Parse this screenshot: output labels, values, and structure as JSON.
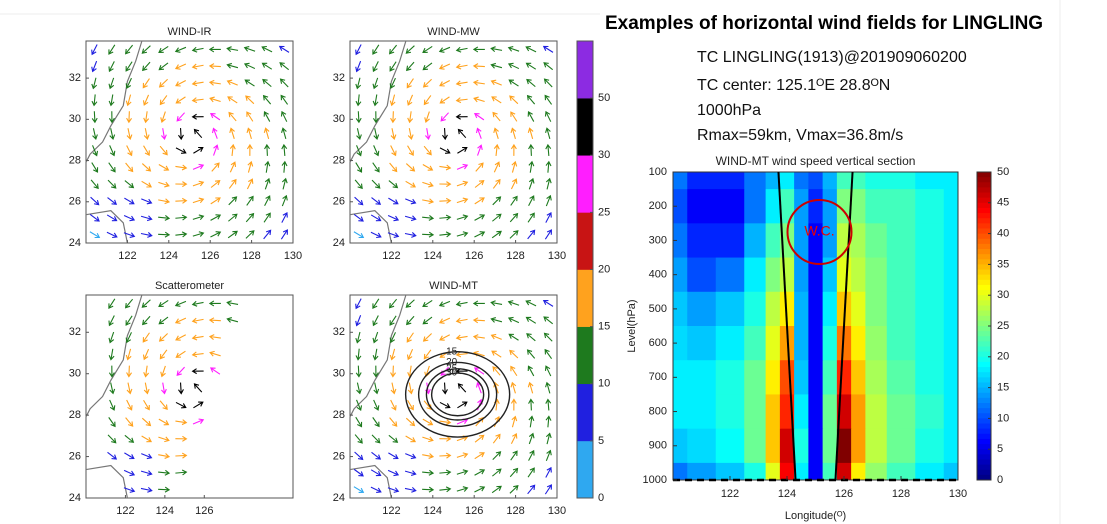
{
  "title": "Examples of horizontal wind fields for LINGLING",
  "info": [
    "TC LINGLING(1913)@201909060200",
    "TC center: 125.1ᴼE 28.8ᴼN",
    "1000hPa",
    "Rmax=59km, Vmax=36.8m/s"
  ],
  "wind_colorbar": {
    "levels": [
      0,
      5,
      10,
      15,
      20,
      25,
      30,
      50
    ],
    "colors": [
      "#2fa8f0",
      "#2020e0",
      "#1e7a1e",
      "#ffa21e",
      "#c81414",
      "#ff1eff",
      "#000000",
      "#8c2be2"
    ]
  },
  "chart_data": [
    {
      "type": "vector_map",
      "title": "WIND-IR",
      "xlim": [
        120,
        130
      ],
      "ylim": [
        24,
        33.8
      ],
      "xticks": [
        122,
        124,
        126,
        128,
        130
      ],
      "yticks": [
        24,
        26,
        28,
        30,
        32
      ]
    },
    {
      "type": "vector_map",
      "title": "WIND-MW",
      "xlim": [
        120,
        130
      ],
      "ylim": [
        24,
        33.8
      ],
      "xticks": [
        122,
        124,
        126,
        128,
        130
      ],
      "yticks": [
        24,
        26,
        28,
        30,
        32
      ]
    },
    {
      "type": "vector_map",
      "title": "Scatterometer",
      "xlim": [
        120,
        130.5
      ],
      "ylim": [
        24,
        33.8
      ],
      "xticks": [
        122,
        124,
        126
      ],
      "yticks": [
        24,
        26,
        28,
        30,
        32
      ]
    },
    {
      "type": "vector_map",
      "title": "WIND-MT",
      "xlim": [
        120,
        130
      ],
      "ylim": [
        24,
        33.8
      ],
      "xticks": [
        122,
        124,
        126,
        128,
        130
      ],
      "yticks": [
        24,
        26,
        28,
        30,
        32
      ],
      "contour_levels": [
        15,
        20,
        25,
        30
      ]
    },
    {
      "type": "heatmap",
      "title": "WIND-MT wind speed vertical section",
      "xlabel": "Longitude(ᴼ)",
      "ylabel": "Level(hPa)",
      "annotation": "W.C.",
      "colormap": "jet",
      "xlim": [
        120,
        130
      ],
      "ylim": [
        1000,
        100
      ],
      "xticks": [
        122,
        124,
        126,
        128,
        130
      ],
      "yticks": [
        100,
        200,
        300,
        400,
        500,
        600,
        700,
        800,
        900,
        1000
      ],
      "clim": [
        0,
        50
      ],
      "cticks": [
        0,
        5,
        10,
        15,
        20,
        25,
        30,
        35,
        40,
        45,
        50
      ],
      "x": [
        120,
        121,
        122,
        123,
        123.5,
        124,
        124.5,
        125,
        125.5,
        126,
        126.5,
        127,
        128,
        129,
        130
      ],
      "y": [
        100,
        200,
        300,
        400,
        500,
        600,
        700,
        800,
        900,
        1000
      ],
      "values": [
        [
          12,
          8,
          8,
          12,
          15,
          18,
          12,
          10,
          15,
          22,
          22,
          20,
          20,
          18,
          18
        ],
        [
          10,
          6,
          6,
          12,
          18,
          22,
          14,
          8,
          14,
          25,
          25,
          22,
          22,
          20,
          18
        ],
        [
          12,
          8,
          8,
          15,
          22,
          25,
          14,
          6,
          14,
          28,
          27,
          24,
          22,
          20,
          18
        ],
        [
          14,
          10,
          12,
          18,
          25,
          28,
          14,
          6,
          16,
          30,
          28,
          25,
          22,
          20,
          18
        ],
        [
          16,
          14,
          16,
          20,
          28,
          32,
          15,
          6,
          18,
          34,
          30,
          25,
          22,
          20,
          18
        ],
        [
          17,
          16,
          18,
          22,
          30,
          36,
          15,
          6,
          20,
          38,
          32,
          26,
          22,
          20,
          18
        ],
        [
          18,
          18,
          20,
          24,
          32,
          40,
          16,
          6,
          22,
          42,
          34,
          27,
          23,
          20,
          18
        ],
        [
          18,
          18,
          20,
          24,
          34,
          42,
          18,
          6,
          24,
          46,
          36,
          28,
          24,
          21,
          18
        ],
        [
          16,
          17,
          19,
          24,
          34,
          46,
          20,
          6,
          24,
          50,
          36,
          28,
          24,
          20,
          18
        ],
        [
          12,
          14,
          16,
          20,
          30,
          44,
          18,
          6,
          22,
          46,
          32,
          26,
          22,
          18,
          16
        ]
      ],
      "lines": [
        {
          "x": [
            124.3,
            123.7
          ],
          "y": [
            1000,
            100
          ]
        },
        {
          "x": [
            125.7,
            126.3
          ],
          "y": [
            1000,
            100
          ]
        }
      ]
    }
  ]
}
